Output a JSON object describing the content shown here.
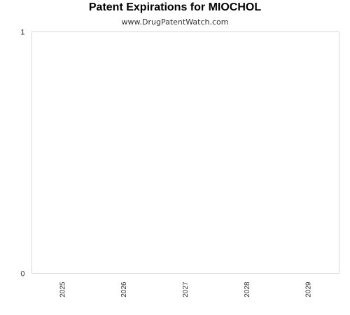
{
  "header": {
    "title": "Patent Expirations for MIOCHOL",
    "subtitle": "www.DrugPatentWatch.com"
  },
  "chart_data": {
    "type": "bar",
    "title": "Patent Expirations for MIOCHOL",
    "subtitle": "www.DrugPatentWatch.com",
    "categories": [
      "2025",
      "2026",
      "2027",
      "2028",
      "2029"
    ],
    "values": [
      0,
      0,
      0,
      0,
      0
    ],
    "ylim": [
      0,
      1
    ],
    "yticks": [
      "0",
      "1"
    ],
    "xlabel": "",
    "ylabel": "",
    "grid": false,
    "colors": {
      "frame": "#d9d9d9",
      "text": "#333333"
    }
  }
}
